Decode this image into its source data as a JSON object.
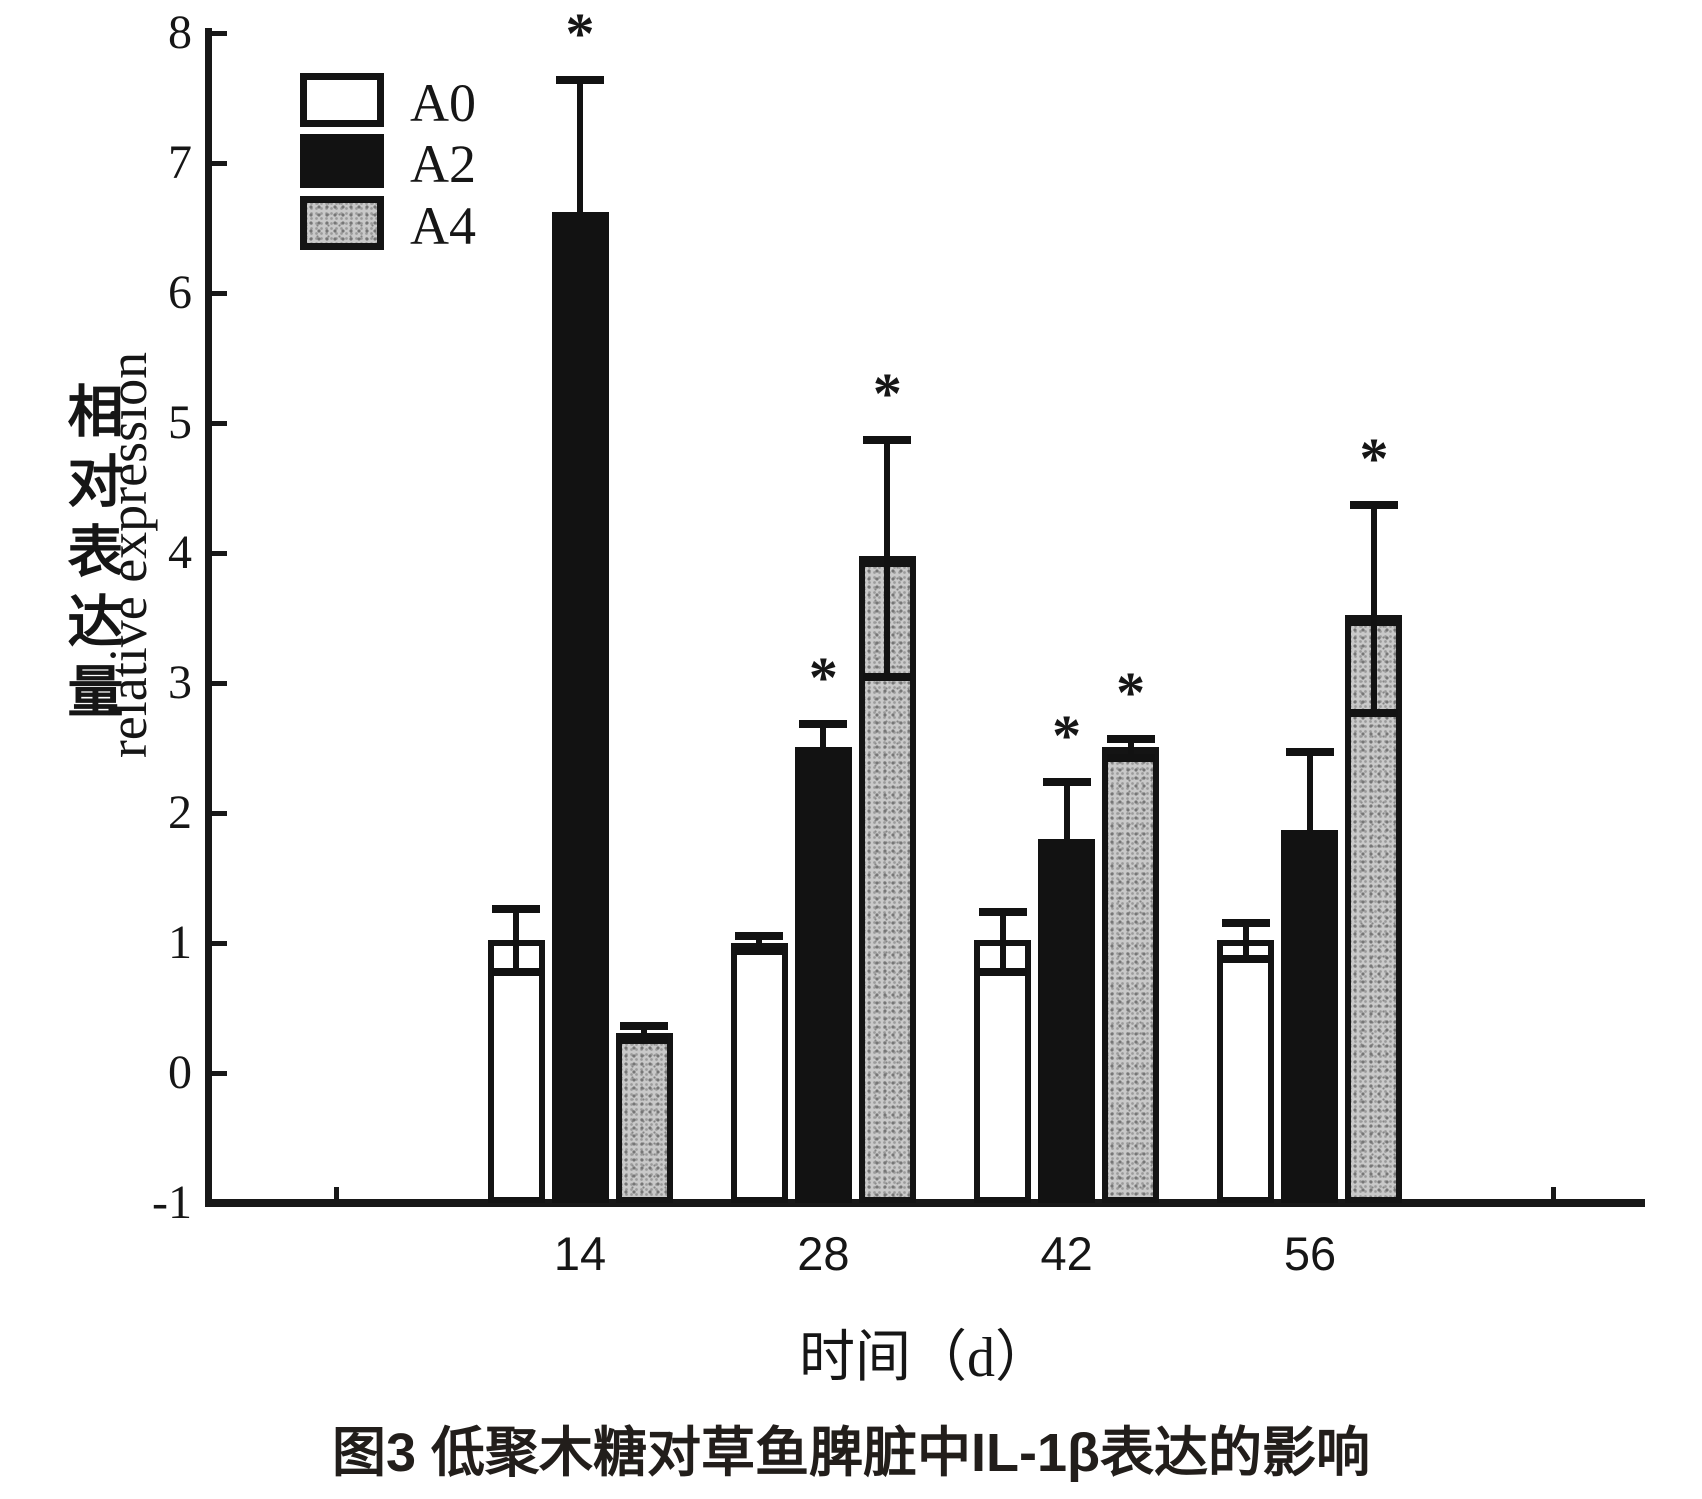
{
  "figure": {
    "legend": {
      "items": [
        {
          "label": "A0",
          "swatch": "white"
        },
        {
          "label": "A2",
          "swatch": "black"
        },
        {
          "label": "A4",
          "swatch": "stipple"
        }
      ]
    },
    "y_axis": {
      "label_cn": "相对表达量",
      "label_en": "relative expression",
      "ticks": [
        "8",
        "7",
        "6",
        "5",
        "4",
        "3",
        "2",
        "1",
        "0",
        "-1"
      ]
    },
    "x_axis": {
      "labels": [
        "14",
        "28",
        "42",
        "56"
      ],
      "title": "时间（d）"
    },
    "sig_marker": "*",
    "caption": "图3 低聚木糖对草鱼脾脏中IL-1β表达的影响"
  },
  "chart_data": {
    "type": "bar",
    "title": "图3 低聚木糖对草鱼脾脏中IL-1β表达的影响",
    "xlabel": "时间（d）",
    "ylabel": "相对表达量 relative expression",
    "ylim": [
      -1,
      8
    ],
    "ytick_step": 1,
    "bars_baseline_value": -1,
    "grid": false,
    "legend_position": "top-left",
    "categories": [
      "14",
      "28",
      "42",
      "56"
    ],
    "series": [
      {
        "name": "A0",
        "fill": "white",
        "values": [
          1.02,
          1.0,
          1.02,
          1.02
        ],
        "err_up": [
          0.25,
          0.06,
          0.23,
          0.14
        ],
        "err_down": [
          0.24,
          0.06,
          0.24,
          0.14
        ],
        "significant": [
          false,
          false,
          false,
          false
        ]
      },
      {
        "name": "A2",
        "fill": "black",
        "values": [
          6.62,
          2.51,
          1.8,
          1.87
        ],
        "err_up": [
          1.03,
          0.18,
          0.45,
          0.61
        ],
        "err_down": [
          0,
          0,
          0,
          0
        ],
        "significant": [
          true,
          true,
          true,
          false
        ]
      },
      {
        "name": "A4",
        "fill": "stipple",
        "values": [
          0.31,
          3.98,
          2.51,
          3.52
        ],
        "err_up": [
          0.06,
          0.9,
          0.07,
          0.86
        ],
        "err_down": [
          0.05,
          0.93,
          0.09,
          0.75
        ],
        "significant": [
          false,
          true,
          true,
          true
        ]
      }
    ],
    "sig_marker": "*",
    "colors": {
      "ink": "#141414",
      "bar_white": "#ffffff",
      "bar_black": "#121212",
      "bar_stipple": "#c9c9c9",
      "paper": "#ffffff"
    }
  }
}
